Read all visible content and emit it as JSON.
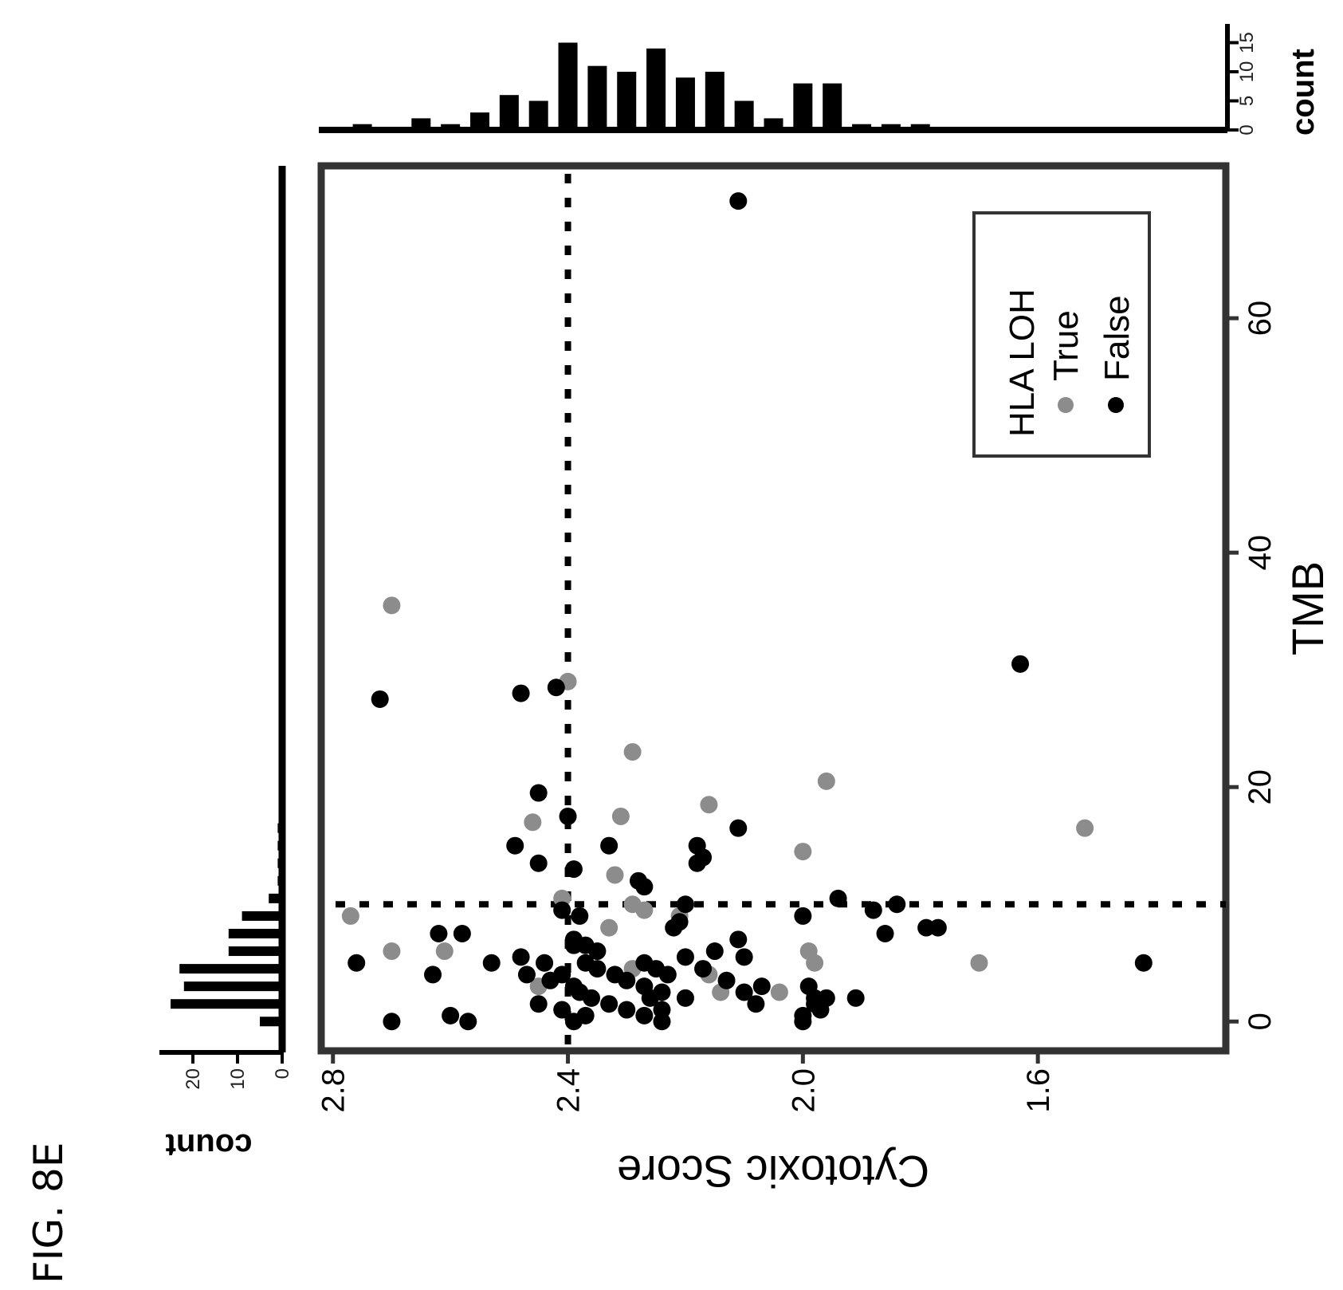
{
  "figure_label": "FIG. 8E",
  "colors": {
    "true": "#8c8c8c",
    "false": "#000000",
    "frame": "#333333"
  },
  "chart_data": [
    {
      "type": "scatter",
      "title": "",
      "xlabel": "TMB",
      "ylabel": "Cytotoxic Score",
      "x_ticks": [
        "0",
        "20",
        "40",
        "60"
      ],
      "y_ticks": [
        "2.8",
        "2.4",
        "2.0",
        "1.6"
      ],
      "xlim": [
        -2.5,
        73
      ],
      "ylim": [
        1.28,
        2.82
      ],
      "grid": false,
      "reference_lines": {
        "tmb": 10,
        "cytotoxic_score": 2.4
      },
      "legend": {
        "title": "HLA LOH",
        "placement": "top-right",
        "entries": [
          "True",
          "False"
        ]
      },
      "series": [
        {
          "name": "True",
          "color": "#8c8c8c",
          "points": [
            [
              35.5,
              2.7
            ],
            [
              29,
              2.4
            ],
            [
              23,
              2.29
            ],
            [
              20.5,
              1.96
            ],
            [
              18.5,
              2.16
            ],
            [
              16.5,
              1.52
            ],
            [
              17,
              2.46
            ],
            [
              17.5,
              2.31
            ],
            [
              14.5,
              2.0
            ],
            [
              12.5,
              2.32
            ],
            [
              10.5,
              2.41
            ],
            [
              10,
              2.29
            ],
            [
              9.5,
              2.27
            ],
            [
              9,
              2.77
            ],
            [
              9,
              2.21
            ],
            [
              8,
              2.33
            ],
            [
              7,
              2.39
            ],
            [
              6,
              2.7
            ],
            [
              6,
              2.61
            ],
            [
              6,
              1.99
            ],
            [
              5,
              2.44
            ],
            [
              5,
              1.98
            ],
            [
              5,
              1.7
            ],
            [
              4.5,
              2.29
            ],
            [
              4,
              2.16
            ],
            [
              3,
              2.45
            ],
            [
              2.5,
              2.04
            ],
            [
              2.5,
              2.14
            ]
          ]
        },
        {
          "name": "False",
          "color": "#000000",
          "points": [
            [
              70,
              2.11
            ],
            [
              30.5,
              1.63
            ],
            [
              27.5,
              2.72
            ],
            [
              28,
              2.48
            ],
            [
              28.5,
              2.42
            ],
            [
              19.5,
              2.45
            ],
            [
              17.5,
              2.4
            ],
            [
              16.5,
              2.11
            ],
            [
              15,
              2.49
            ],
            [
              15,
              2.33
            ],
            [
              15,
              2.18
            ],
            [
              14,
              2.17
            ],
            [
              13.5,
              2.45
            ],
            [
              13,
              2.39
            ],
            [
              13.5,
              2.18
            ],
            [
              12,
              2.28
            ],
            [
              11.5,
              2.27
            ],
            [
              10.5,
              1.94
            ],
            [
              10,
              1.84
            ],
            [
              10,
              2.2
            ],
            [
              9.5,
              2.41
            ],
            [
              9.5,
              1.88
            ],
            [
              9,
              2.0
            ],
            [
              9,
              2.38
            ],
            [
              8.5,
              2.21
            ],
            [
              8,
              2.22
            ],
            [
              8,
              1.79
            ],
            [
              8,
              1.77
            ],
            [
              7.5,
              2.62
            ],
            [
              7.5,
              2.58
            ],
            [
              7.5,
              1.86
            ],
            [
              7,
              2.39
            ],
            [
              7,
              2.11
            ],
            [
              6.5,
              2.39
            ],
            [
              6.5,
              2.37
            ],
            [
              6,
              2.35
            ],
            [
              6,
              2.15
            ],
            [
              5.5,
              2.48
            ],
            [
              5.5,
              2.2
            ],
            [
              5.5,
              2.1
            ],
            [
              5,
              2.76
            ],
            [
              5,
              2.53
            ],
            [
              5,
              2.44
            ],
            [
              5,
              2.37
            ],
            [
              5,
              2.27
            ],
            [
              5,
              1.42
            ],
            [
              4.5,
              2.35
            ],
            [
              4.5,
              2.25
            ],
            [
              4.5,
              2.17
            ],
            [
              4,
              2.63
            ],
            [
              4,
              2.47
            ],
            [
              4,
              2.41
            ],
            [
              4,
              2.32
            ],
            [
              4,
              2.23
            ],
            [
              3.5,
              2.43
            ],
            [
              3.5,
              2.3
            ],
            [
              3.5,
              2.13
            ],
            [
              3,
              2.39
            ],
            [
              3,
              2.27
            ],
            [
              3,
              2.07
            ],
            [
              3,
              1.99
            ],
            [
              2.5,
              2.38
            ],
            [
              2.5,
              2.24
            ],
            [
              2.5,
              2.1
            ],
            [
              2,
              2.36
            ],
            [
              2,
              2.26
            ],
            [
              2,
              2.2
            ],
            [
              2,
              1.98
            ],
            [
              2,
              1.96
            ],
            [
              2,
              1.91
            ],
            [
              1.5,
              2.45
            ],
            [
              1.5,
              2.33
            ],
            [
              1.5,
              2.08
            ],
            [
              1.5,
              1.98
            ],
            [
              1,
              2.41
            ],
            [
              1,
              2.3
            ],
            [
              1,
              2.24
            ],
            [
              1,
              1.97
            ],
            [
              0.5,
              2.6
            ],
            [
              0.5,
              2.37
            ],
            [
              0.5,
              2.27
            ],
            [
              0.5,
              2.0
            ],
            [
              0,
              2.7
            ],
            [
              0,
              2.57
            ],
            [
              0,
              2.39
            ],
            [
              0,
              2.24
            ],
            [
              0,
              2.0
            ]
          ]
        }
      ]
    },
    {
      "type": "bar",
      "title": "",
      "xlabel": "TMB",
      "ylabel": "count",
      "orientation": "horizontal",
      "count_ticks": [
        "0",
        "10",
        "20"
      ],
      "xlim": [
        0,
        25
      ],
      "bins": [
        {
          "tmb": 0,
          "count": 5
        },
        {
          "tmb": 1.5,
          "count": 25
        },
        {
          "tmb": 3,
          "count": 22
        },
        {
          "tmb": 4.5,
          "count": 23
        },
        {
          "tmb": 6,
          "count": 12
        },
        {
          "tmb": 7.5,
          "count": 12
        },
        {
          "tmb": 9,
          "count": 9
        },
        {
          "tmb": 10.5,
          "count": 3
        },
        {
          "tmb": 12,
          "count": 1
        },
        {
          "tmb": 13.5,
          "count": 1
        },
        {
          "tmb": 15,
          "count": 1
        },
        {
          "tmb": 16.5,
          "count": 1
        }
      ]
    },
    {
      "type": "bar",
      "title": "",
      "xlabel": "Cytotoxic Score",
      "ylabel": "count",
      "orientation": "vertical",
      "count_ticks": [
        "0",
        "5",
        "10",
        "15"
      ],
      "xlim": [
        0,
        16
      ],
      "bins": [
        {
          "score": 2.8,
          "count": 0
        },
        {
          "score": 2.75,
          "count": 1
        },
        {
          "score": 2.7,
          "count": 0
        },
        {
          "score": 2.65,
          "count": 2
        },
        {
          "score": 2.6,
          "count": 1
        },
        {
          "score": 2.55,
          "count": 3
        },
        {
          "score": 2.5,
          "count": 6
        },
        {
          "score": 2.45,
          "count": 5
        },
        {
          "score": 2.4,
          "count": 15
        },
        {
          "score": 2.35,
          "count": 11
        },
        {
          "score": 2.3,
          "count": 10
        },
        {
          "score": 2.25,
          "count": 14
        },
        {
          "score": 2.2,
          "count": 9
        },
        {
          "score": 2.15,
          "count": 10
        },
        {
          "score": 2.1,
          "count": 5
        },
        {
          "score": 2.05,
          "count": 2
        },
        {
          "score": 2.0,
          "count": 8
        },
        {
          "score": 1.95,
          "count": 8
        },
        {
          "score": 1.9,
          "count": 1
        },
        {
          "score": 1.85,
          "count": 1
        },
        {
          "score": 1.8,
          "count": 1
        }
      ]
    }
  ]
}
